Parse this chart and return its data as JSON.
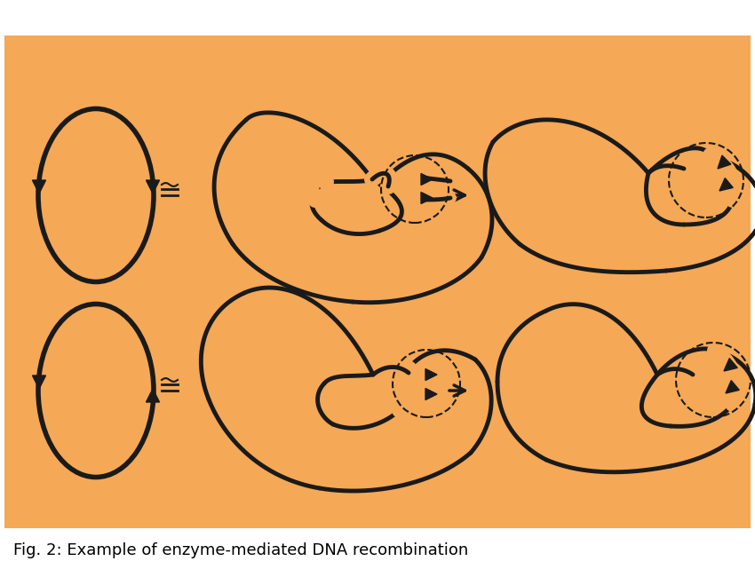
{
  "bg_color": "#F5A855",
  "lc": "#1a1a1a",
  "lw": 3.5,
  "title": "Fig. 2: Example of enzyme-mediated DNA recombination",
  "title_fontsize": 13
}
